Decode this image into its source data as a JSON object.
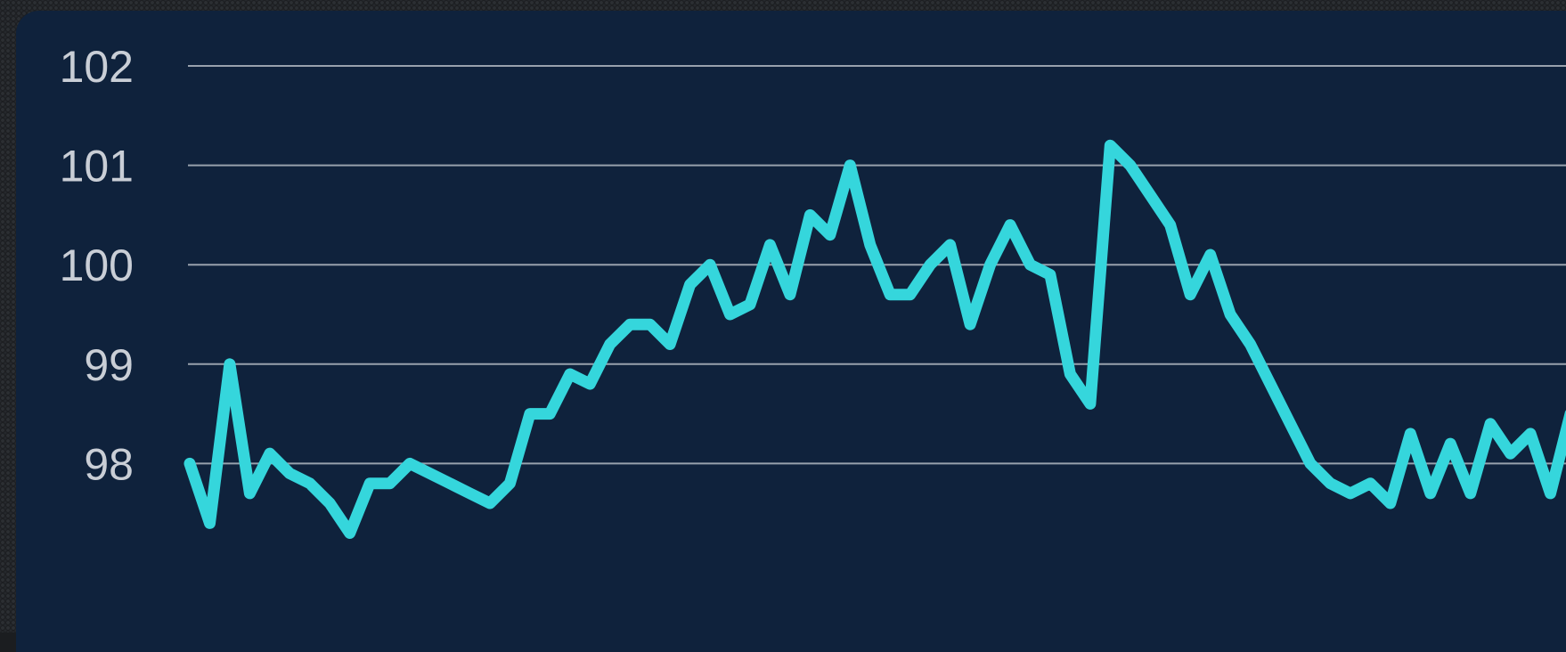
{
  "chart_data": {
    "type": "line",
    "title": "",
    "xlabel": "",
    "ylabel": "",
    "ylim": [
      97.5,
      102.4
    ],
    "yticks": [
      98,
      99,
      100,
      101,
      102
    ],
    "grid": true,
    "legend": "none",
    "colors": {
      "line": "#35d6dc",
      "grid": "#c7ccd3",
      "background": "#0f223c",
      "frame": "#1d1f22",
      "tick_text": "#c9ced6"
    },
    "series": [
      {
        "values": [
          98.0,
          97.4,
          99.0,
          97.7,
          98.1,
          97.9,
          97.8,
          97.6,
          97.3,
          97.8,
          97.8,
          98.0,
          97.9,
          97.8,
          97.7,
          97.6,
          97.8,
          98.5,
          98.5,
          98.9,
          98.8,
          99.2,
          99.4,
          99.4,
          99.2,
          99.8,
          100.0,
          99.5,
          99.6,
          100.2,
          99.7,
          100.5,
          100.3,
          101.0,
          100.2,
          99.7,
          99.7,
          100.0,
          100.2,
          99.4,
          100.0,
          100.4,
          100.0,
          99.9,
          98.9,
          98.6,
          101.2,
          101.0,
          100.7,
          100.4,
          99.7,
          100.1,
          99.5,
          99.2,
          98.8,
          98.4,
          98.0,
          97.8,
          97.7,
          97.8,
          97.6,
          98.3,
          97.7,
          98.2,
          97.7,
          98.4,
          98.1,
          98.3,
          97.7,
          98.5
        ]
      }
    ]
  }
}
